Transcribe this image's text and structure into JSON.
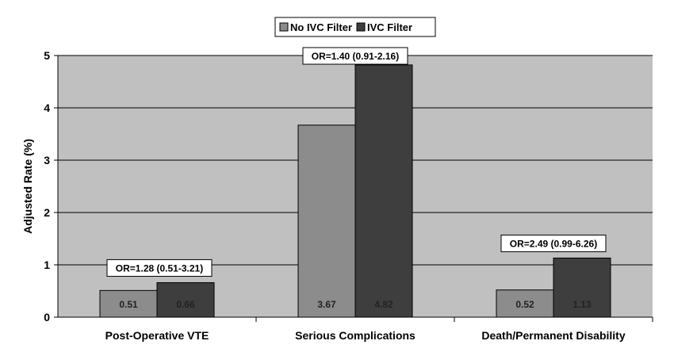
{
  "chart_data": {
    "type": "bar",
    "title": "",
    "xlabel": "",
    "ylabel": "Adjusted Rate (%)",
    "ylim": [
      0,
      5
    ],
    "yticks": [
      "0",
      "1",
      "2",
      "3",
      "4",
      "5"
    ],
    "grid": true,
    "legend_position": "top-center",
    "categories": [
      "Post-Operative VTE",
      "Serious Complications",
      "Death/Permanent Disability"
    ],
    "series": [
      {
        "name": "No IVC Filter",
        "color": "#8c8c8c",
        "values": [
          0.51,
          3.67,
          0.52
        ],
        "labels": [
          "0.51",
          "3.67",
          "0.52"
        ]
      },
      {
        "name": "IVC Filter",
        "color": "#3e3e3e",
        "values": [
          0.66,
          4.82,
          1.13
        ],
        "labels": [
          "0.66",
          "4.82",
          "1.13"
        ]
      }
    ],
    "annotations": [
      "OR=1.28 (0.51-3.21)",
      "OR=1.40 (0.91-2.16)",
      "OR=2.49 (0.99-6.26)"
    ],
    "plot_background": "#c0c0c0"
  }
}
